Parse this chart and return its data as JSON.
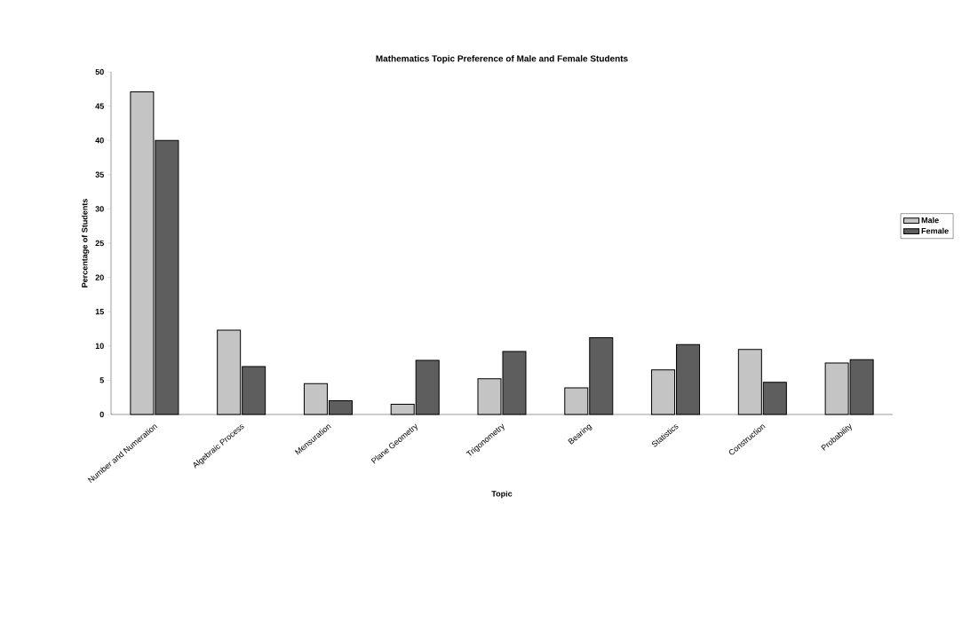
{
  "chart_data": {
    "type": "bar",
    "title": "Mathematics Topic Preference of Male and Female Students",
    "xlabel": "Topic",
    "ylabel": "Percentage of Students",
    "categories": [
      "Number and Numeration",
      "Algebraic Process",
      "Mensuration",
      "Plane Geometry",
      "Trigonometry",
      "Bearing",
      "Statistics",
      "Construction",
      "Probability"
    ],
    "series": [
      {
        "name": "Male",
        "color": "#c4c4c4",
        "values": [
          47.1,
          12.3,
          4.5,
          1.5,
          5.2,
          3.9,
          6.5,
          9.5,
          7.5
        ]
      },
      {
        "name": "Female",
        "color": "#5e5e5e",
        "values": [
          40,
          7,
          2,
          7.9,
          9.2,
          11.2,
          10.2,
          4.7,
          8
        ]
      }
    ],
    "ylim": [
      0,
      50
    ],
    "yticks": [
      0,
      5,
      10,
      15,
      20,
      25,
      30,
      35,
      40,
      45,
      50
    ],
    "grid": false,
    "legend": "right"
  }
}
